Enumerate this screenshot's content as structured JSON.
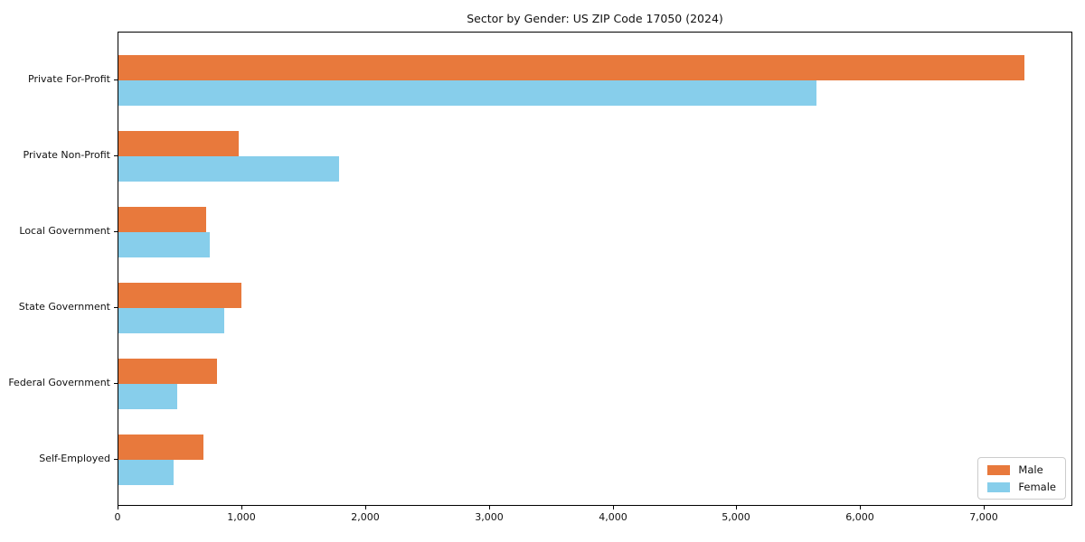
{
  "chart_data": {
    "type": "bar",
    "orientation": "horizontal",
    "title": "Sector by Gender: US ZIP Code 17050 (2024)",
    "categories": [
      "Private For-Profit",
      "Private Non-Profit",
      "Local Government",
      "State Government",
      "Federal Government",
      "Self-Employed"
    ],
    "series": [
      {
        "name": "Male",
        "color": "#e8793c",
        "values": [
          7320,
          975,
          705,
          990,
          795,
          685
        ]
      },
      {
        "name": "Female",
        "color": "#87ceeb",
        "values": [
          5640,
          1785,
          740,
          855,
          475,
          445
        ]
      }
    ],
    "xlabel": "",
    "ylabel": "",
    "xlim": [
      0,
      7700
    ],
    "x_ticks": [
      0,
      1000,
      2000,
      3000,
      4000,
      5000,
      6000,
      7000
    ],
    "x_tick_labels": [
      "0",
      "1,000",
      "2,000",
      "3,000",
      "4,000",
      "5,000",
      "6,000",
      "7,000"
    ],
    "grid": false,
    "legend": {
      "position": "lower right",
      "entries": [
        "Male",
        "Female"
      ]
    }
  }
}
